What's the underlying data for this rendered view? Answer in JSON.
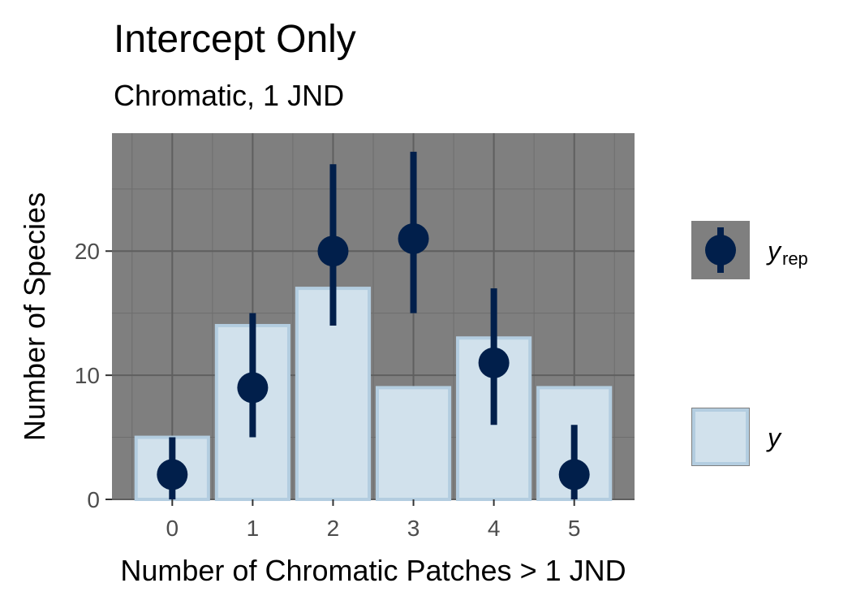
{
  "chart_data": {
    "type": "bar",
    "title": "Intercept Only",
    "subtitle": "Chromatic, 1 JND",
    "xlabel": "Number of Chromatic Patches > 1 JND",
    "ylabel": "Number of Species",
    "categories": [
      "0",
      "1",
      "2",
      "3",
      "4",
      "5"
    ],
    "x": [
      0,
      1,
      2,
      3,
      4,
      5
    ],
    "xlim": [
      -0.75,
      5.75
    ],
    "ylim": [
      0,
      29.5
    ],
    "yticks": [
      0,
      10,
      20
    ],
    "grid": true,
    "panel_background": "#7f7f7f",
    "series": [
      {
        "name": "y",
        "kind": "bar",
        "values": [
          5,
          14,
          17,
          9,
          13,
          9
        ],
        "fill": "#d1e1ec",
        "stroke": "#b3cde0"
      },
      {
        "name": "y_rep",
        "kind": "pointrange",
        "values": [
          2,
          9,
          20,
          21,
          11,
          2
        ],
        "lower": [
          0,
          5,
          14,
          15,
          6,
          0
        ],
        "upper": [
          5,
          15,
          27,
          28,
          17,
          6
        ],
        "color": "#011f4b"
      }
    ],
    "legend": {
      "position": "right",
      "items": [
        {
          "symbol": "y",
          "subscript": "rep",
          "kind": "pointrange"
        },
        {
          "symbol": "y",
          "subscript": "",
          "kind": "bar"
        }
      ]
    }
  }
}
